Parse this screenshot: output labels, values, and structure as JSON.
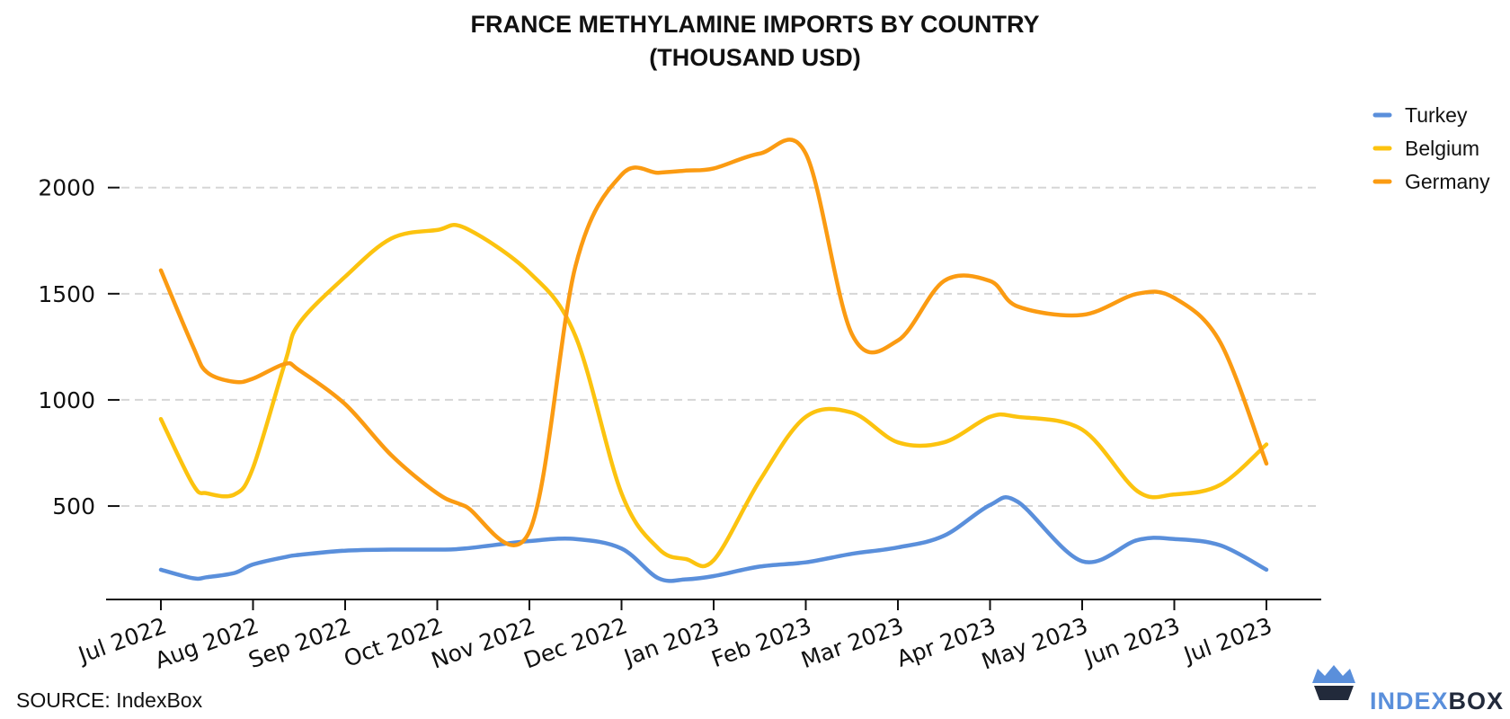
{
  "chart_data": {
    "type": "line",
    "title": [
      "FRANCE METHYLAMINE IMPORTS BY COUNTRY",
      "(THOUSAND USD)"
    ],
    "categories": [
      "Jul 2022",
      "Aug 2022",
      "Sep 2022",
      "Oct 2022",
      "Nov 2022",
      "Dec 2022",
      "Jan 2023",
      "Feb 2023",
      "Mar 2023",
      "Apr 2023",
      "May 2023",
      "Jun 2023",
      "Jul 2023"
    ],
    "x": [
      0,
      0.35,
      0.5,
      0.8,
      1,
      1.35,
      1.5,
      2,
      2.5,
      3,
      3.3,
      4,
      4.5,
      5,
      5.4,
      5.7,
      6,
      6.5,
      7,
      7.5,
      8,
      8.5,
      9,
      9.3,
      10,
      10.6,
      11,
      11.5,
      12
    ],
    "series": [
      {
        "name": "Turkey",
        "color": "#5a8fdb",
        "values": [
          200,
          160,
          165,
          185,
          225,
          260,
          270,
          290,
          295,
          295,
          300,
          335,
          345,
          300,
          160,
          155,
          170,
          215,
          235,
          275,
          305,
          360,
          505,
          520,
          240,
          340,
          345,
          315,
          200
        ]
      },
      {
        "name": "Belgium",
        "color": "#fcc30f",
        "values": [
          910,
          600,
          560,
          555,
          680,
          1180,
          1360,
          1580,
          1760,
          1800,
          1810,
          1600,
          1300,
          560,
          300,
          250,
          245,
          620,
          920,
          940,
          800,
          800,
          920,
          920,
          860,
          570,
          555,
          600,
          790
        ]
      },
      {
        "name": "Germany",
        "color": "#fb9b12",
        "values": [
          1610,
          1250,
          1130,
          1085,
          1100,
          1170,
          1140,
          980,
          740,
          560,
          500,
          380,
          1630,
          2060,
          2070,
          2080,
          2090,
          2160,
          2160,
          1310,
          1280,
          1560,
          1560,
          1440,
          1400,
          1500,
          1480,
          1270,
          700
        ]
      }
    ],
    "y_ticks": [
      500,
      1000,
      1500,
      2000
    ],
    "ylim": [
      60,
      2240
    ],
    "grid": true,
    "legend": "top-right"
  },
  "source": "SOURCE: IndexBox",
  "brand": {
    "part1": "INDEX",
    "part2": "BOX",
    "color1": "#5a8fdb",
    "color2": "#222a3b"
  }
}
